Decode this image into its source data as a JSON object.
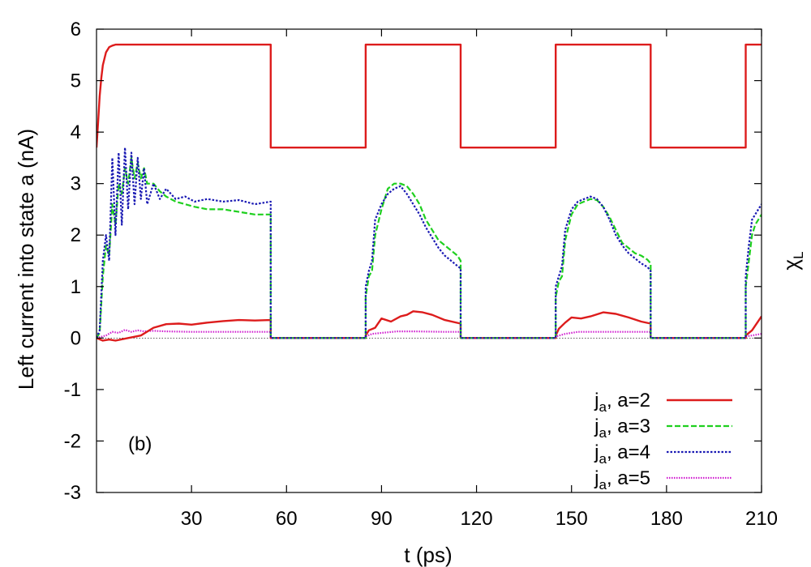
{
  "chart_data": {
    "type": "line",
    "title": "",
    "panel_label": "(b)",
    "xlabel": "t (ps)",
    "ylabel": "Left current into state a (nA)",
    "y2label": {
      "base": "χ",
      "sub": "L"
    },
    "xlim": [
      0,
      210
    ],
    "ylim": [
      -3,
      6
    ],
    "xticks": [
      30,
      60,
      90,
      120,
      150,
      180,
      210
    ],
    "yticks": [
      -3,
      -2,
      -1,
      0,
      1,
      2,
      3,
      4,
      5,
      6
    ],
    "zero_line": true,
    "legend_position": "bottom-right",
    "series": [
      {
        "name": "χL (right axis)",
        "legend": false,
        "color": "#dd1c1c",
        "style": "solid",
        "x": [
          0,
          0.5,
          1,
          1.5,
          2,
          3,
          4,
          5,
          6,
          8,
          55,
          55,
          85,
          85,
          115,
          115,
          145,
          145,
          175,
          175,
          205,
          205,
          210
        ],
        "y": [
          3.7,
          4.2,
          4.7,
          5.05,
          5.3,
          5.55,
          5.65,
          5.68,
          5.7,
          5.7,
          5.7,
          3.7,
          3.7,
          5.7,
          5.7,
          3.7,
          3.7,
          5.7,
          5.7,
          3.7,
          3.7,
          5.7,
          5.7
        ]
      },
      {
        "name": "a=2",
        "legend_prefix": "j",
        "legend_sub": "a",
        "legend_suffix": ", a=2",
        "color": "#dd1c1c",
        "style": "solid",
        "x": [
          0,
          2,
          4,
          6,
          10,
          14,
          18,
          22,
          26,
          30,
          35,
          40,
          45,
          50,
          55,
          55,
          85,
          85,
          86,
          88,
          90,
          93,
          96,
          98,
          100,
          103,
          106,
          110,
          115,
          115,
          145,
          145,
          146,
          148,
          150,
          153,
          156,
          160,
          164,
          168,
          172,
          175,
          175,
          205,
          205,
          207,
          210
        ],
        "y": [
          0,
          -0.05,
          -0.03,
          -0.05,
          0,
          0.05,
          0.2,
          0.27,
          0.28,
          0.26,
          0.3,
          0.33,
          0.35,
          0.34,
          0.35,
          0,
          0,
          0.05,
          0.15,
          0.2,
          0.38,
          0.32,
          0.42,
          0.45,
          0.52,
          0.5,
          0.45,
          0.35,
          0.28,
          0,
          0,
          0.05,
          0.18,
          0.3,
          0.4,
          0.38,
          0.42,
          0.5,
          0.47,
          0.4,
          0.32,
          0.28,
          0,
          0,
          0.05,
          0.15,
          0.42
        ]
      },
      {
        "name": "a=3",
        "legend_prefix": "j",
        "legend_sub": "a",
        "legend_suffix": ", a=3",
        "color": "#1fd01f",
        "style": "dash",
        "x": [
          0,
          1,
          2,
          3,
          4,
          5,
          6,
          7,
          8,
          9,
          10,
          11,
          12,
          13,
          14,
          15,
          16,
          18,
          20,
          22,
          25,
          28,
          31,
          35,
          40,
          45,
          50,
          55,
          55,
          85,
          85,
          86,
          87,
          88,
          90,
          92,
          94,
          96,
          98,
          100,
          102,
          104,
          106,
          108,
          110,
          112,
          114,
          115,
          115,
          145,
          145,
          146,
          147,
          148,
          150,
          152,
          154,
          156,
          158,
          160,
          162,
          164,
          166,
          168,
          170,
          172,
          174,
          175,
          175,
          205,
          205,
          206,
          207,
          208,
          209,
          210
        ],
        "y": [
          0,
          0.1,
          1.2,
          1.8,
          1.6,
          2.6,
          2.2,
          3.0,
          2.8,
          3.3,
          3.0,
          3.5,
          3.1,
          3.4,
          3.1,
          3.3,
          3.0,
          3.0,
          2.85,
          2.75,
          2.65,
          2.6,
          2.55,
          2.5,
          2.5,
          2.45,
          2.4,
          2.4,
          0,
          0,
          0.8,
          1.2,
          1.3,
          2.0,
          2.5,
          2.9,
          3.0,
          3.0,
          2.95,
          2.8,
          2.6,
          2.3,
          2.1,
          1.9,
          1.8,
          1.7,
          1.6,
          1.5,
          0,
          0,
          0.8,
          1.1,
          1.2,
          1.9,
          2.4,
          2.6,
          2.65,
          2.7,
          2.68,
          2.55,
          2.35,
          2.1,
          1.85,
          1.75,
          1.65,
          1.6,
          1.52,
          1.45,
          0,
          0,
          1.0,
          1.5,
          2.0,
          2.2,
          2.3,
          2.4
        ]
      },
      {
        "name": "a=4",
        "legend_prefix": "j",
        "legend_sub": "a",
        "legend_suffix": ", a=4",
        "color": "#1919b3",
        "style": "dot",
        "x": [
          0,
          1,
          2,
          3,
          4,
          5,
          6,
          7,
          8,
          9,
          10,
          11,
          12,
          13,
          14,
          15,
          16,
          18,
          20,
          22,
          25,
          28,
          31,
          35,
          40,
          45,
          50,
          55,
          55,
          85,
          85,
          86,
          87,
          88,
          90,
          92,
          94,
          96,
          98,
          100,
          102,
          104,
          106,
          108,
          110,
          112,
          114,
          115,
          115,
          145,
          145,
          146,
          147,
          148,
          150,
          152,
          154,
          156,
          158,
          160,
          162,
          164,
          166,
          168,
          170,
          172,
          174,
          175,
          175,
          205,
          205,
          206,
          207,
          208,
          209,
          210
        ],
        "y": [
          0,
          0.15,
          1.5,
          2.0,
          1.5,
          3.5,
          2.0,
          3.6,
          2.2,
          3.7,
          2.5,
          3.6,
          2.6,
          3.5,
          2.7,
          3.3,
          2.6,
          3.0,
          2.7,
          2.9,
          2.7,
          2.75,
          2.65,
          2.7,
          2.65,
          2.68,
          2.6,
          2.65,
          0,
          0,
          1.0,
          1.3,
          1.5,
          2.3,
          2.6,
          2.8,
          2.9,
          2.95,
          2.8,
          2.6,
          2.4,
          2.15,
          1.95,
          1.75,
          1.6,
          1.5,
          1.4,
          1.35,
          0,
          0,
          1.0,
          1.2,
          1.4,
          2.1,
          2.5,
          2.65,
          2.7,
          2.75,
          2.7,
          2.55,
          2.3,
          2.0,
          1.8,
          1.65,
          1.55,
          1.45,
          1.38,
          1.3,
          0,
          0,
          1.2,
          1.8,
          2.3,
          2.4,
          2.5,
          2.6
        ]
      },
      {
        "name": "a=5",
        "legend_prefix": "j",
        "legend_sub": "a",
        "legend_suffix": ", a=5",
        "color": "#d01fd0",
        "style": "finedot",
        "x": [
          0,
          3,
          5,
          7,
          9,
          11,
          13,
          15,
          18,
          22,
          30,
          40,
          50,
          55,
          55,
          85,
          85,
          87,
          90,
          95,
          100,
          110,
          115,
          115,
          145,
          145,
          148,
          152,
          158,
          165,
          175,
          175,
          205,
          205,
          208,
          210
        ],
        "y": [
          0,
          0.05,
          0.12,
          0.1,
          0.16,
          0.12,
          0.15,
          0.13,
          0.14,
          0.13,
          0.12,
          0.12,
          0.12,
          0.12,
          0,
          0,
          0.03,
          0.08,
          0.1,
          0.13,
          0.13,
          0.12,
          0.12,
          0,
          0,
          0.03,
          0.08,
          0.12,
          0.12,
          0.12,
          0.12,
          0,
          0,
          0.03,
          0.06,
          0.08
        ]
      }
    ]
  }
}
